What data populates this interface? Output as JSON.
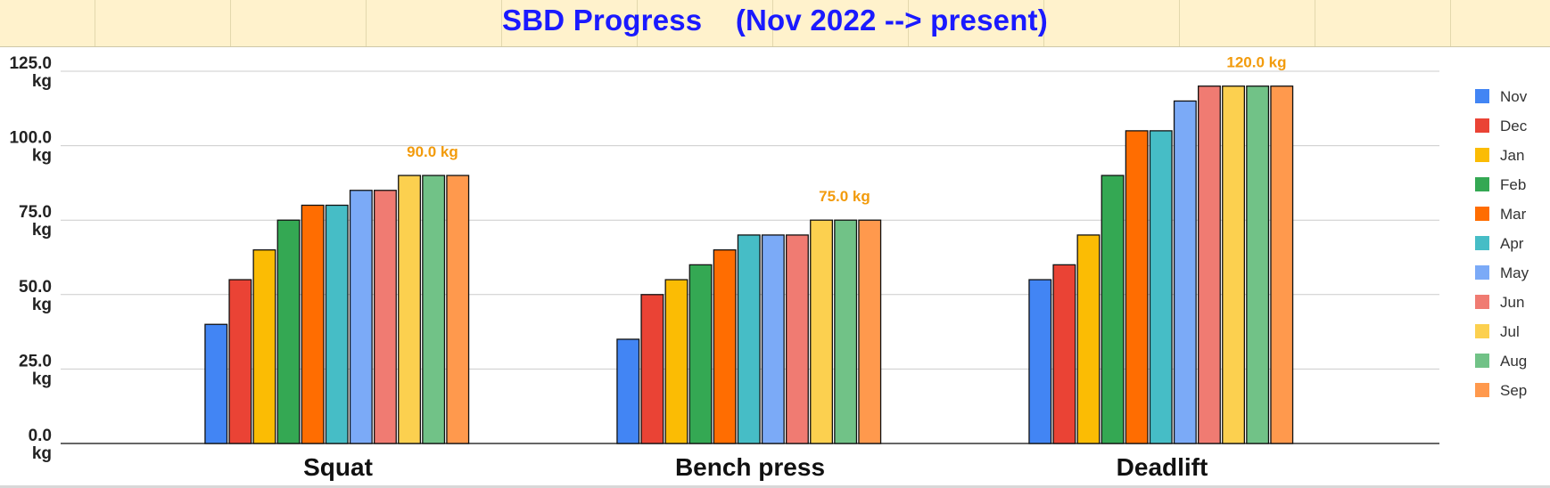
{
  "sheet": {
    "title": "SBD Progress    (Nov 2022 --> present)"
  },
  "chart_data": {
    "type": "bar",
    "title": "SBD Progress    (Nov 2022 --> present)",
    "xlabel": "",
    "ylabel": "",
    "ylim": [
      0,
      125
    ],
    "yticks": [
      "0.0",
      "25.0",
      "50.0",
      "75.0",
      "100.0",
      "125.0"
    ],
    "ytick_values": [
      0,
      25,
      50,
      75,
      100,
      125
    ],
    "ytick_unit": "kg",
    "grid": true,
    "legend_position": "right",
    "categories": [
      "Squat",
      "Bench press",
      "Deadlift"
    ],
    "series": [
      {
        "name": "Nov",
        "color": "#4285f4",
        "values": [
          40,
          35,
          55
        ]
      },
      {
        "name": "Dec",
        "color": "#ea4335",
        "values": [
          55,
          50,
          60
        ]
      },
      {
        "name": "Jan",
        "color": "#fbbc04",
        "values": [
          65,
          55,
          70
        ]
      },
      {
        "name": "Feb",
        "color": "#34a853",
        "values": [
          75,
          60,
          90
        ]
      },
      {
        "name": "Mar",
        "color": "#ff6d01",
        "values": [
          80,
          65,
          105
        ]
      },
      {
        "name": "Apr",
        "color": "#46bdc6",
        "values": [
          80,
          70,
          105
        ]
      },
      {
        "name": "May",
        "color": "#7baaf7",
        "values": [
          85,
          70,
          115
        ]
      },
      {
        "name": "Jun",
        "color": "#f07b72",
        "values": [
          85,
          70,
          120
        ]
      },
      {
        "name": "Jul",
        "color": "#fcd04f",
        "values": [
          90,
          75,
          120
        ]
      },
      {
        "name": "Aug",
        "color": "#71c287",
        "values": [
          90,
          75,
          120
        ]
      },
      {
        "name": "Sep",
        "color": "#ff994d",
        "values": [
          90,
          75,
          120
        ]
      }
    ],
    "annotations": [
      {
        "category": "Squat",
        "text": "90.0 kg"
      },
      {
        "category": "Bench press",
        "text": "75.0 kg"
      },
      {
        "category": "Deadlift",
        "text": "120.0 kg"
      }
    ],
    "annotation_color": "#f29b0c"
  }
}
